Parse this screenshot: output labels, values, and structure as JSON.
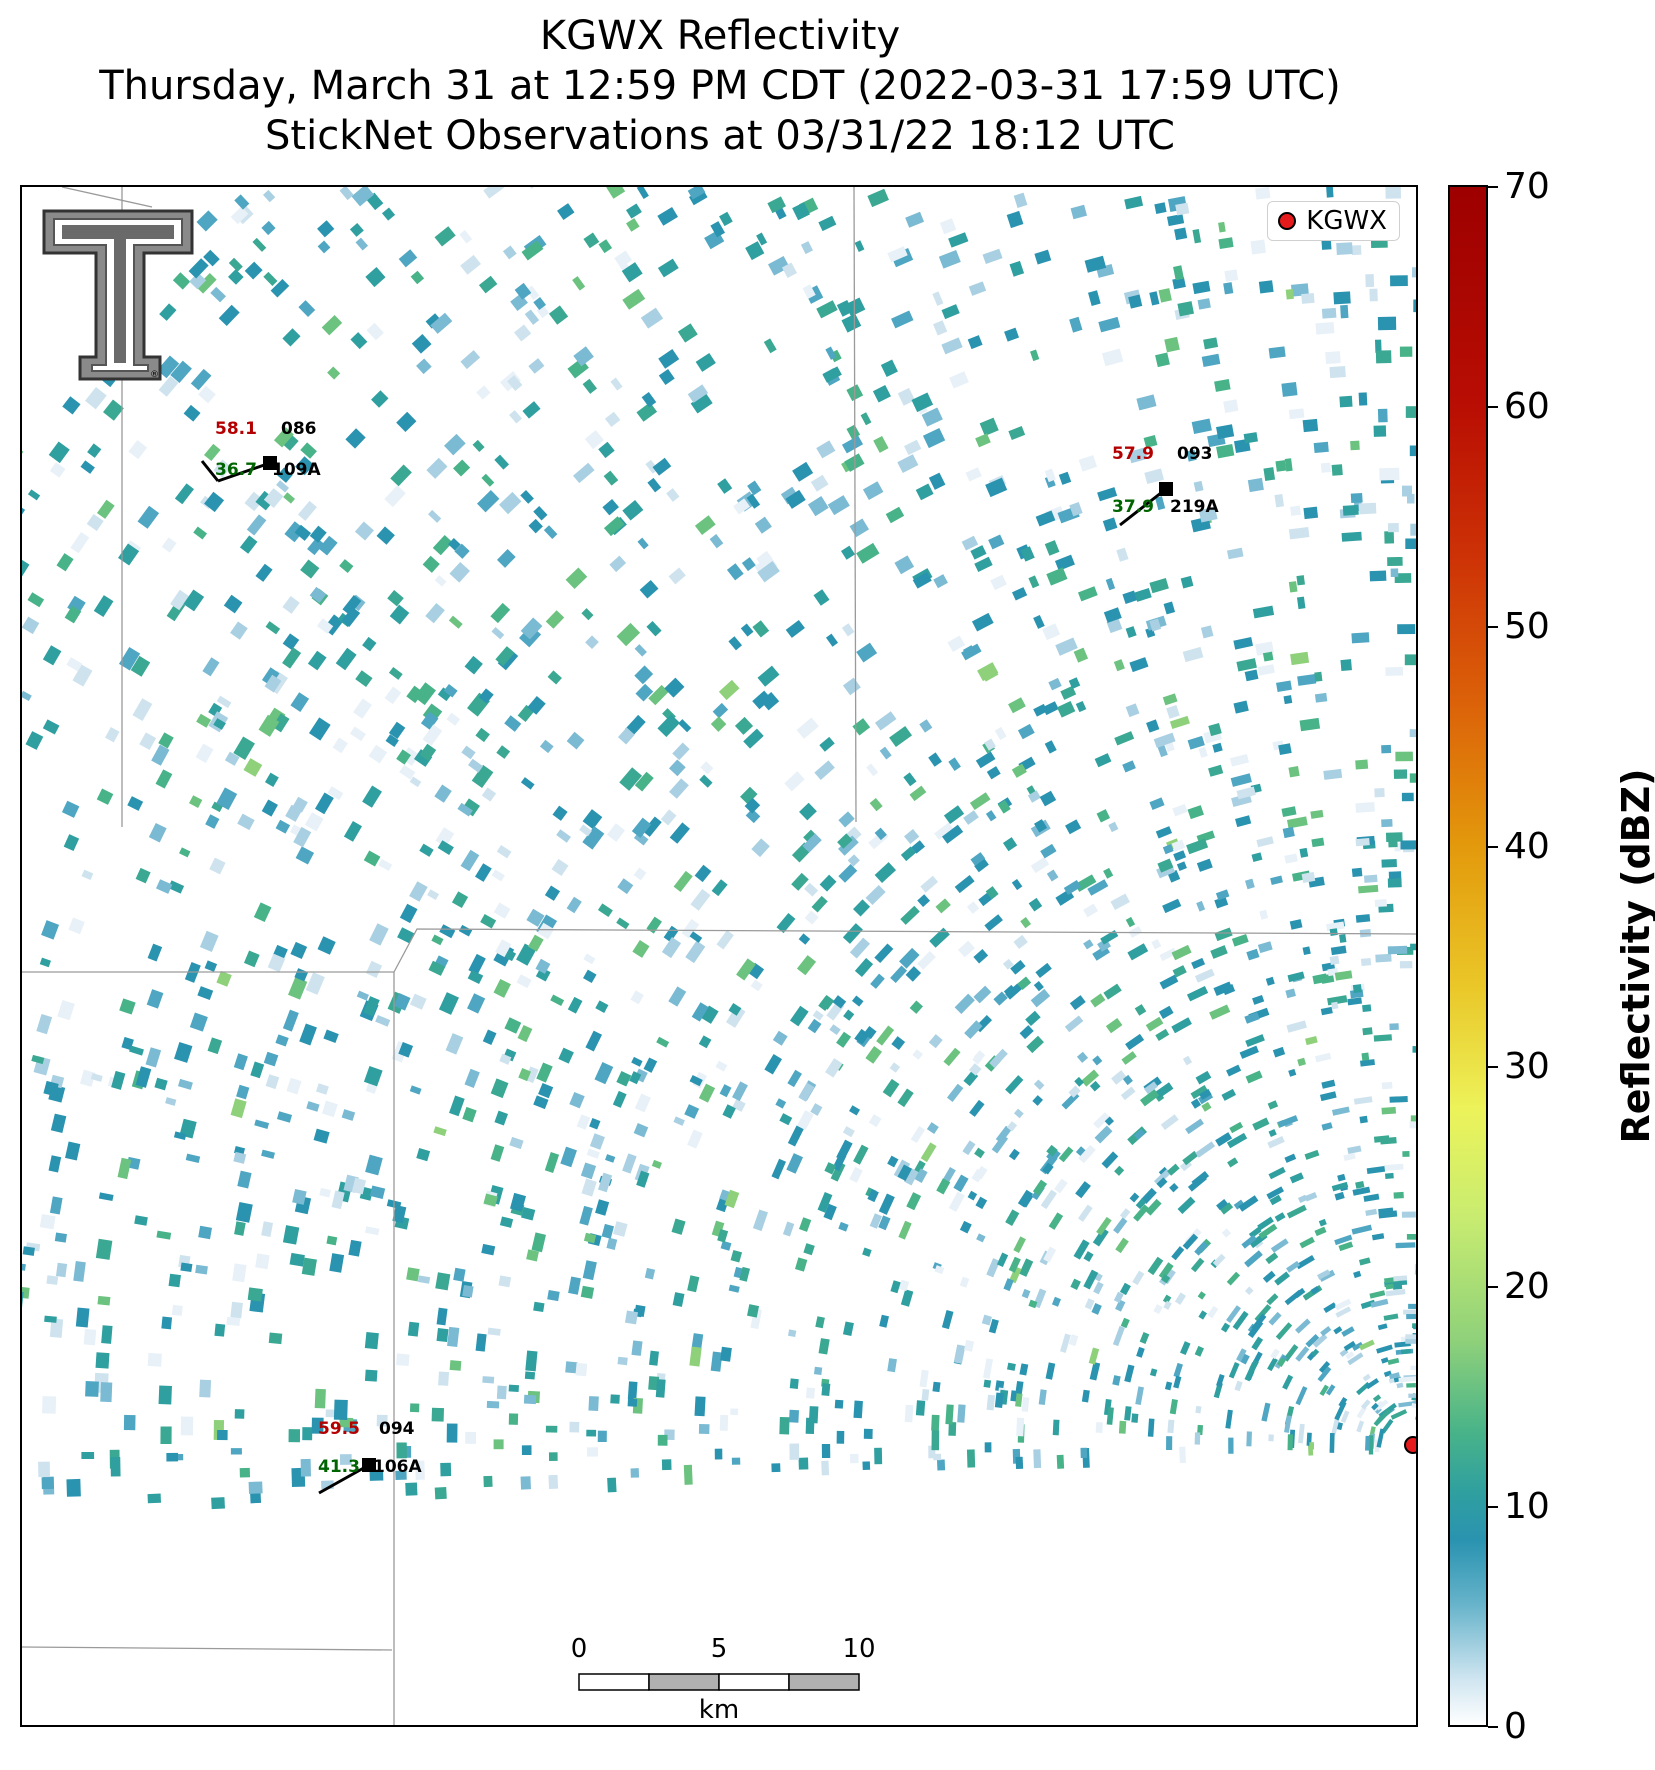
{
  "title": {
    "line1": "KGWX Reflectivity",
    "line2": "Thursday, March 31 at 12:59 PM CDT (2022-03-31 17:59 UTC)",
    "line3": "StickNet Observations at 03/31/22 18:12 UTC"
  },
  "legend": {
    "label": "KGWX",
    "marker_color": "#e41a1c"
  },
  "colorbar": {
    "label": "Reflectivity (dBZ)",
    "ticks": [
      "0",
      "10",
      "20",
      "30",
      "40",
      "50",
      "60",
      "70"
    ],
    "colors": [
      "#ffffff",
      "#2a93b0",
      "#48b389",
      "#8fd17a",
      "#ecf35a",
      "#eac729",
      "#dc6409",
      "#9d0000"
    ]
  },
  "scale_bar": {
    "labels": [
      "0",
      "5",
      "10"
    ],
    "unit": "km"
  },
  "stations": [
    {
      "temp": "58.1",
      "dew": "36.7",
      "id_top": "086",
      "id_bottom": "109A"
    },
    {
      "temp": "57.9",
      "dew": "37.9",
      "id_top": "093",
      "id_bottom": "219A"
    },
    {
      "temp": "59.5",
      "dew": "41.3",
      "id_top": "094",
      "id_bottom": "106A"
    }
  ],
  "logo": {
    "mark": "®"
  }
}
